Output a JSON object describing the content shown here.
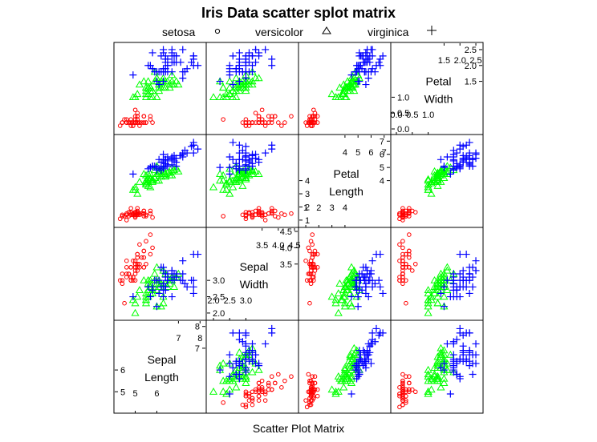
{
  "chart_data": {
    "type": "scatter",
    "title": "Iris Data scatter splot matrix",
    "xlabel": "Scatter Plot Matrix",
    "variables": [
      {
        "key": "sl",
        "name": "Sepal Length",
        "lines": [
          "Sepal",
          "Length"
        ],
        "range": [
          4.2,
          8.1
        ],
        "low_ticks": [
          {
            "v": 5,
            "label": "5"
          },
          {
            "v": 6,
            "label": "6"
          }
        ],
        "high_ticks": [
          {
            "v": 7,
            "label": "7"
          },
          {
            "v": 8,
            "label": "8"
          }
        ]
      },
      {
        "key": "sw",
        "name": "Sepal Width",
        "lines": [
          "Sepal",
          "Width"
        ],
        "range": [
          1.9,
          4.5
        ],
        "low_ticks": [
          {
            "v": 2.0,
            "label": "2.0"
          },
          {
            "v": 2.5,
            "label": "2.5"
          },
          {
            "v": 3.0,
            "label": "3.0"
          }
        ],
        "high_ticks": [
          {
            "v": 3.5,
            "label": "3.5"
          },
          {
            "v": 4.0,
            "label": "4.0"
          },
          {
            "v": 4.5,
            "label": "4.5"
          }
        ]
      },
      {
        "key": "pl",
        "name": "Petal Length",
        "lines": [
          "Petal",
          "Length"
        ],
        "range": [
          0.75,
          7.2
        ],
        "low_ticks": [
          {
            "v": 1,
            "label": "1"
          },
          {
            "v": 2,
            "label": "2"
          },
          {
            "v": 3,
            "label": "3"
          },
          {
            "v": 4,
            "label": "4"
          }
        ],
        "high_ticks": [
          {
            "v": 4,
            "label": "4"
          },
          {
            "v": 5,
            "label": "5"
          },
          {
            "v": 6,
            "label": "6"
          },
          {
            "v": 7,
            "label": "7"
          }
        ]
      },
      {
        "key": "pw",
        "name": "Petal Width",
        "lines": [
          "Petal",
          "Width"
        ],
        "range": [
          -0.05,
          2.6
        ],
        "low_ticks": [
          {
            "v": 0.0,
            "label": "0.0"
          },
          {
            "v": 0.5,
            "label": "0.5"
          },
          {
            "v": 1.0,
            "label": "1.0"
          }
        ],
        "high_ticks": [
          {
            "v": 1.5,
            "label": "1.5"
          },
          {
            "v": 2.0,
            "label": "2.0"
          },
          {
            "v": 2.5,
            "label": "2.5"
          }
        ]
      }
    ],
    "groups": [
      {
        "name": "setosa",
        "symbol": "circle",
        "color": "#ff0000",
        "glyph": "o"
      },
      {
        "name": "versicolor",
        "symbol": "triangle",
        "color": "#00ff00",
        "glyph": "△"
      },
      {
        "name": "virginica",
        "symbol": "plus",
        "color": "#0000ff",
        "glyph": "+"
      }
    ],
    "series": [
      {
        "name": "setosa",
        "points": [
          [
            5.1,
            3.5,
            1.4,
            0.2
          ],
          [
            4.9,
            3.0,
            1.4,
            0.2
          ],
          [
            4.7,
            3.2,
            1.3,
            0.2
          ],
          [
            4.6,
            3.1,
            1.5,
            0.2
          ],
          [
            5.0,
            3.6,
            1.4,
            0.2
          ],
          [
            5.4,
            3.9,
            1.7,
            0.4
          ],
          [
            4.6,
            3.4,
            1.4,
            0.3
          ],
          [
            5.0,
            3.4,
            1.5,
            0.2
          ],
          [
            4.4,
            2.9,
            1.4,
            0.2
          ],
          [
            4.9,
            3.1,
            1.5,
            0.1
          ],
          [
            5.4,
            3.7,
            1.5,
            0.2
          ],
          [
            4.8,
            3.4,
            1.6,
            0.2
          ],
          [
            4.8,
            3.0,
            1.4,
            0.1
          ],
          [
            4.3,
            3.0,
            1.1,
            0.1
          ],
          [
            5.8,
            4.0,
            1.2,
            0.2
          ],
          [
            5.7,
            4.4,
            1.5,
            0.4
          ],
          [
            5.4,
            3.9,
            1.3,
            0.4
          ],
          [
            5.1,
            3.5,
            1.4,
            0.3
          ],
          [
            5.7,
            3.8,
            1.7,
            0.3
          ],
          [
            5.1,
            3.8,
            1.5,
            0.3
          ],
          [
            5.4,
            3.4,
            1.7,
            0.2
          ],
          [
            5.1,
            3.7,
            1.5,
            0.4
          ],
          [
            4.6,
            3.6,
            1.0,
            0.2
          ],
          [
            5.1,
            3.3,
            1.7,
            0.5
          ],
          [
            4.8,
            3.4,
            1.9,
            0.2
          ],
          [
            5.0,
            3.0,
            1.6,
            0.2
          ],
          [
            5.0,
            3.4,
            1.6,
            0.4
          ],
          [
            5.2,
            3.5,
            1.5,
            0.2
          ],
          [
            5.2,
            3.4,
            1.4,
            0.2
          ],
          [
            4.7,
            3.2,
            1.6,
            0.2
          ],
          [
            4.8,
            3.1,
            1.6,
            0.2
          ],
          [
            5.4,
            3.4,
            1.5,
            0.4
          ],
          [
            5.2,
            4.1,
            1.5,
            0.1
          ],
          [
            5.5,
            4.2,
            1.4,
            0.2
          ],
          [
            4.9,
            3.1,
            1.5,
            0.2
          ],
          [
            5.0,
            3.2,
            1.2,
            0.2
          ],
          [
            5.5,
            3.5,
            1.3,
            0.2
          ],
          [
            4.9,
            3.6,
            1.4,
            0.1
          ],
          [
            4.4,
            3.0,
            1.3,
            0.2
          ],
          [
            5.1,
            3.4,
            1.5,
            0.2
          ],
          [
            5.0,
            3.5,
            1.3,
            0.3
          ],
          [
            4.5,
            2.3,
            1.3,
            0.3
          ],
          [
            4.4,
            3.2,
            1.3,
            0.2
          ],
          [
            5.0,
            3.5,
            1.6,
            0.6
          ],
          [
            5.1,
            3.8,
            1.9,
            0.4
          ],
          [
            4.8,
            3.0,
            1.4,
            0.3
          ],
          [
            5.1,
            3.8,
            1.6,
            0.2
          ],
          [
            4.6,
            3.2,
            1.4,
            0.2
          ],
          [
            5.3,
            3.7,
            1.5,
            0.2
          ],
          [
            5.0,
            3.3,
            1.4,
            0.2
          ]
        ]
      },
      {
        "name": "versicolor",
        "points": [
          [
            7.0,
            3.2,
            4.7,
            1.4
          ],
          [
            6.4,
            3.2,
            4.5,
            1.5
          ],
          [
            6.9,
            3.1,
            4.9,
            1.5
          ],
          [
            5.5,
            2.3,
            4.0,
            1.3
          ],
          [
            6.5,
            2.8,
            4.6,
            1.5
          ],
          [
            5.7,
            2.8,
            4.5,
            1.3
          ],
          [
            6.3,
            3.3,
            4.7,
            1.6
          ],
          [
            4.9,
            2.4,
            3.3,
            1.0
          ],
          [
            6.6,
            2.9,
            4.6,
            1.3
          ],
          [
            5.2,
            2.7,
            3.9,
            1.4
          ],
          [
            5.0,
            2.0,
            3.5,
            1.0
          ],
          [
            5.9,
            3.0,
            4.2,
            1.5
          ],
          [
            6.0,
            2.2,
            4.0,
            1.0
          ],
          [
            6.1,
            2.9,
            4.7,
            1.4
          ],
          [
            5.6,
            2.9,
            3.6,
            1.3
          ],
          [
            6.7,
            3.1,
            4.4,
            1.4
          ],
          [
            5.6,
            3.0,
            4.5,
            1.5
          ],
          [
            5.8,
            2.7,
            4.1,
            1.0
          ],
          [
            6.2,
            2.2,
            4.5,
            1.5
          ],
          [
            5.6,
            2.5,
            3.9,
            1.1
          ],
          [
            5.9,
            3.2,
            4.8,
            1.8
          ],
          [
            6.1,
            2.8,
            4.0,
            1.3
          ],
          [
            6.3,
            2.5,
            4.9,
            1.5
          ],
          [
            6.1,
            2.8,
            4.7,
            1.2
          ],
          [
            6.4,
            2.9,
            4.3,
            1.3
          ],
          [
            6.6,
            3.0,
            4.4,
            1.4
          ],
          [
            6.8,
            2.8,
            4.8,
            1.4
          ],
          [
            6.7,
            3.0,
            5.0,
            1.7
          ],
          [
            6.0,
            2.9,
            4.5,
            1.5
          ],
          [
            5.7,
            2.6,
            3.5,
            1.0
          ],
          [
            5.5,
            2.4,
            3.8,
            1.1
          ],
          [
            5.5,
            2.4,
            3.7,
            1.0
          ],
          [
            5.8,
            2.7,
            3.9,
            1.2
          ],
          [
            6.0,
            2.7,
            5.1,
            1.6
          ],
          [
            5.4,
            3.0,
            4.5,
            1.5
          ],
          [
            6.0,
            3.4,
            4.5,
            1.6
          ],
          [
            6.7,
            3.1,
            4.7,
            1.5
          ],
          [
            6.3,
            2.3,
            4.4,
            1.3
          ],
          [
            5.6,
            3.0,
            4.1,
            1.3
          ],
          [
            5.5,
            2.5,
            4.0,
            1.3
          ],
          [
            5.5,
            2.6,
            4.4,
            1.2
          ],
          [
            6.1,
            3.0,
            4.6,
            1.4
          ],
          [
            5.8,
            2.6,
            4.0,
            1.2
          ],
          [
            5.0,
            2.3,
            3.3,
            1.0
          ],
          [
            5.6,
            2.7,
            4.2,
            1.3
          ],
          [
            5.7,
            3.0,
            4.2,
            1.2
          ],
          [
            5.7,
            2.9,
            4.2,
            1.3
          ],
          [
            6.2,
            2.9,
            4.3,
            1.3
          ],
          [
            5.1,
            2.5,
            3.0,
            1.1
          ],
          [
            5.7,
            2.8,
            4.1,
            1.3
          ]
        ]
      },
      {
        "name": "virginica",
        "points": [
          [
            6.3,
            3.3,
            6.0,
            2.5
          ],
          [
            5.8,
            2.7,
            5.1,
            1.9
          ],
          [
            7.1,
            3.0,
            5.9,
            2.1
          ],
          [
            6.3,
            2.9,
            5.6,
            1.8
          ],
          [
            6.5,
            3.0,
            5.8,
            2.2
          ],
          [
            7.6,
            3.0,
            6.6,
            2.1
          ],
          [
            4.9,
            2.5,
            4.5,
            1.7
          ],
          [
            7.3,
            2.9,
            6.3,
            1.8
          ],
          [
            6.7,
            2.5,
            5.8,
            1.8
          ],
          [
            7.2,
            3.6,
            6.1,
            2.5
          ],
          [
            6.5,
            3.2,
            5.1,
            2.0
          ],
          [
            6.4,
            2.7,
            5.3,
            1.9
          ],
          [
            6.8,
            3.0,
            5.5,
            2.1
          ],
          [
            5.7,
            2.5,
            5.0,
            2.0
          ],
          [
            5.8,
            2.8,
            5.1,
            2.4
          ],
          [
            6.4,
            3.2,
            5.3,
            2.3
          ],
          [
            6.5,
            3.0,
            5.5,
            1.8
          ],
          [
            7.7,
            3.8,
            6.7,
            2.2
          ],
          [
            7.7,
            2.6,
            6.9,
            2.3
          ],
          [
            6.0,
            2.2,
            5.0,
            1.5
          ],
          [
            6.9,
            3.2,
            5.7,
            2.3
          ],
          [
            5.6,
            2.8,
            4.9,
            2.0
          ],
          [
            7.7,
            2.8,
            6.7,
            2.0
          ],
          [
            6.3,
            2.7,
            4.9,
            1.8
          ],
          [
            6.7,
            3.3,
            5.7,
            2.1
          ],
          [
            7.2,
            3.2,
            6.0,
            1.8
          ],
          [
            6.2,
            2.8,
            4.8,
            1.8
          ],
          [
            6.1,
            3.0,
            4.9,
            1.8
          ],
          [
            6.4,
            2.8,
            5.6,
            2.1
          ],
          [
            7.2,
            3.0,
            5.8,
            1.6
          ],
          [
            7.4,
            2.8,
            6.1,
            1.9
          ],
          [
            7.9,
            3.8,
            6.4,
            2.0
          ],
          [
            6.4,
            2.8,
            5.6,
            2.2
          ],
          [
            6.3,
            2.8,
            5.1,
            1.5
          ],
          [
            6.1,
            2.6,
            5.6,
            1.4
          ],
          [
            7.7,
            3.0,
            6.1,
            2.3
          ],
          [
            6.3,
            3.4,
            5.6,
            2.4
          ],
          [
            6.4,
            3.1,
            5.5,
            1.8
          ],
          [
            6.0,
            3.0,
            4.8,
            1.8
          ],
          [
            6.9,
            3.1,
            5.4,
            2.1
          ],
          [
            6.7,
            3.1,
            5.6,
            2.4
          ],
          [
            6.9,
            3.1,
            5.1,
            2.3
          ],
          [
            5.8,
            2.7,
            5.1,
            1.9
          ],
          [
            6.8,
            3.2,
            5.9,
            2.3
          ],
          [
            6.7,
            3.3,
            5.7,
            2.5
          ],
          [
            6.7,
            3.0,
            5.2,
            2.3
          ],
          [
            6.3,
            2.5,
            5.0,
            1.9
          ],
          [
            6.5,
            3.0,
            5.2,
            2.0
          ],
          [
            6.2,
            3.4,
            5.4,
            2.3
          ],
          [
            5.9,
            3.0,
            5.1,
            1.8
          ]
        ]
      }
    ]
  }
}
